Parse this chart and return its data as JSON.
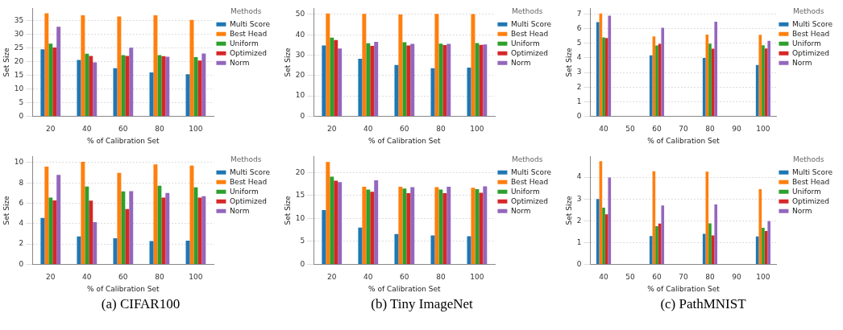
{
  "chart_data": [
    {
      "type": "bar",
      "xlabel": "% of Calibration Set",
      "ylabel": "Set Size",
      "legend_title": "Methods",
      "legend": "right",
      "grid": "y",
      "categories": [
        "20",
        "40",
        "60",
        "80",
        "100"
      ],
      "ylim": [
        0,
        39.5
      ],
      "yticks": [
        0,
        5,
        10,
        15,
        20,
        25,
        30,
        35
      ],
      "series": [
        {
          "name": "Multi Score",
          "color": "#1f77b4",
          "values": [
            24.5,
            20.6,
            17.6,
            16.0,
            15.4
          ]
        },
        {
          "name": "Best Head",
          "color": "#ff7f0e",
          "values": [
            37.7,
            37.0,
            36.5,
            37.0,
            35.3
          ]
        },
        {
          "name": "Uniform",
          "color": "#2ca02c",
          "values": [
            26.6,
            22.9,
            22.4,
            22.4,
            21.6
          ]
        },
        {
          "name": "Optimized",
          "color": "#d62728",
          "values": [
            25.2,
            22.1,
            22.1,
            22.0,
            20.4
          ]
        },
        {
          "name": "Norm",
          "color": "#9467bd",
          "values": [
            32.8,
            19.7,
            25.1,
            21.8,
            23.0
          ]
        }
      ]
    },
    {
      "type": "bar",
      "xlabel": "% of Calibration Set",
      "ylabel": "Set Size",
      "legend_title": "Methods",
      "legend": "right",
      "grid": "y",
      "categories": [
        "20",
        "40",
        "60",
        "80",
        "100"
      ],
      "ylim": [
        0,
        53
      ],
      "yticks": [
        0,
        10,
        20,
        30,
        40,
        50
      ],
      "series": [
        {
          "name": "Multi Score",
          "color": "#1f77b4",
          "values": [
            34.8,
            28.2,
            25.2,
            23.6,
            23.9
          ]
        },
        {
          "name": "Best Head",
          "color": "#ff7f0e",
          "values": [
            50.5,
            50.3,
            50.0,
            50.3,
            50.2
          ]
        },
        {
          "name": "Uniform",
          "color": "#2ca02c",
          "values": [
            38.6,
            35.9,
            36.3,
            35.7,
            36.0
          ]
        },
        {
          "name": "Optimized",
          "color": "#d62728",
          "values": [
            37.4,
            34.6,
            34.8,
            35.0,
            35.1
          ]
        },
        {
          "name": "Norm",
          "color": "#9467bd",
          "values": [
            33.3,
            36.5,
            35.6,
            35.6,
            35.3
          ]
        }
      ]
    },
    {
      "type": "bar",
      "xlabel": "% of Calibration Set",
      "ylabel": "Set Size",
      "legend_title": "Methods",
      "legend": "right",
      "grid": "y",
      "categories": [
        "40",
        "50",
        "60",
        "70",
        "80",
        "90",
        "100"
      ],
      "ylim": [
        0,
        7.4
      ],
      "yticks": [
        0,
        1,
        2,
        3,
        4,
        5,
        6,
        7
      ],
      "series": [
        {
          "name": "Multi Score",
          "color": "#1f77b4",
          "values": [
            6.45,
            null,
            4.18,
            null,
            4.0,
            null,
            3.52
          ]
        },
        {
          "name": "Best Head",
          "color": "#ff7f0e",
          "values": [
            7.05,
            null,
            5.47,
            null,
            5.6,
            null,
            5.58
          ]
        },
        {
          "name": "Uniform",
          "color": "#2ca02c",
          "values": [
            5.4,
            null,
            4.85,
            null,
            4.98,
            null,
            4.87
          ]
        },
        {
          "name": "Optimized",
          "color": "#d62728",
          "values": [
            5.37,
            null,
            4.97,
            null,
            4.63,
            null,
            4.65
          ]
        },
        {
          "name": "Norm",
          "color": "#9467bd",
          "values": [
            6.9,
            null,
            6.07,
            null,
            6.48,
            null,
            5.17
          ]
        }
      ]
    },
    {
      "type": "bar",
      "xlabel": "% of Calibration Set",
      "ylabel": "Set Size",
      "legend_title": "Methods",
      "legend": "right",
      "grid": "y",
      "categories": [
        "20",
        "40",
        "60",
        "80",
        "100"
      ],
      "ylim": [
        0,
        10.6
      ],
      "yticks": [
        0,
        2,
        4,
        6,
        8,
        10
      ],
      "annotations": [
        "(a) CIFAR100"
      ],
      "series": [
        {
          "name": "Multi Score",
          "color": "#1f77b4",
          "values": [
            4.57,
            2.75,
            2.57,
            2.28,
            2.32
          ]
        },
        {
          "name": "Best Head",
          "color": "#ff7f0e",
          "values": [
            9.6,
            10.07,
            9.0,
            9.82,
            9.7
          ]
        },
        {
          "name": "Uniform",
          "color": "#2ca02c",
          "values": [
            6.55,
            7.65,
            7.17,
            7.73,
            7.57
          ]
        },
        {
          "name": "Optimized",
          "color": "#d62728",
          "values": [
            6.28,
            6.27,
            5.43,
            6.55,
            6.55
          ]
        },
        {
          "name": "Norm",
          "color": "#9467bd",
          "values": [
            8.8,
            4.15,
            7.2,
            7.02,
            6.7
          ]
        }
      ]
    },
    {
      "type": "bar",
      "xlabel": "% of Calibration Set",
      "ylabel": "Set Size",
      "legend_title": "Methods",
      "legend": "right",
      "grid": "y",
      "categories": [
        "20",
        "40",
        "60",
        "80",
        "100"
      ],
      "ylim": [
        0,
        23.5
      ],
      "yticks": [
        0,
        5,
        10,
        15,
        20
      ],
      "annotations": [
        "(b) Tiny ImageNet"
      ],
      "series": [
        {
          "name": "Multi Score",
          "color": "#1f77b4",
          "values": [
            11.8,
            8.0,
            6.6,
            6.3,
            6.1
          ]
        },
        {
          "name": "Best Head",
          "color": "#ff7f0e",
          "values": [
            22.3,
            16.9,
            16.9,
            16.8,
            16.7
          ]
        },
        {
          "name": "Uniform",
          "color": "#2ca02c",
          "values": [
            19.1,
            16.3,
            16.5,
            16.3,
            16.4
          ]
        },
        {
          "name": "Optimized",
          "color": "#d62728",
          "values": [
            18.2,
            15.8,
            15.5,
            15.5,
            15.6
          ]
        },
        {
          "name": "Norm",
          "color": "#9467bd",
          "values": [
            17.9,
            18.3,
            16.8,
            16.9,
            17.0
          ]
        }
      ]
    },
    {
      "type": "bar",
      "xlabel": "% of Calibration Set",
      "ylabel": "Set Size",
      "legend_title": "Methods",
      "legend": "right",
      "grid": "y",
      "categories": [
        "40",
        "50",
        "60",
        "70",
        "80",
        "90",
        "100"
      ],
      "ylim": [
        0,
        4.95
      ],
      "yticks": [
        0,
        1,
        2,
        3,
        4
      ],
      "annotations": [
        "(c) PathMNIST"
      ],
      "series": [
        {
          "name": "Multi Score",
          "color": "#1f77b4",
          "values": [
            3.0,
            null,
            1.3,
            null,
            1.4,
            null,
            1.28
          ]
        },
        {
          "name": "Best Head",
          "color": "#ff7f0e",
          "values": [
            4.73,
            null,
            4.27,
            null,
            4.25,
            null,
            3.45
          ]
        },
        {
          "name": "Uniform",
          "color": "#2ca02c",
          "values": [
            2.6,
            null,
            1.75,
            null,
            1.88,
            null,
            1.68
          ]
        },
        {
          "name": "Optimized",
          "color": "#d62728",
          "values": [
            2.3,
            null,
            1.87,
            null,
            1.33,
            null,
            1.53
          ]
        },
        {
          "name": "Norm",
          "color": "#9467bd",
          "values": [
            3.99,
            null,
            2.7,
            null,
            2.75,
            null,
            1.98
          ]
        }
      ]
    }
  ]
}
